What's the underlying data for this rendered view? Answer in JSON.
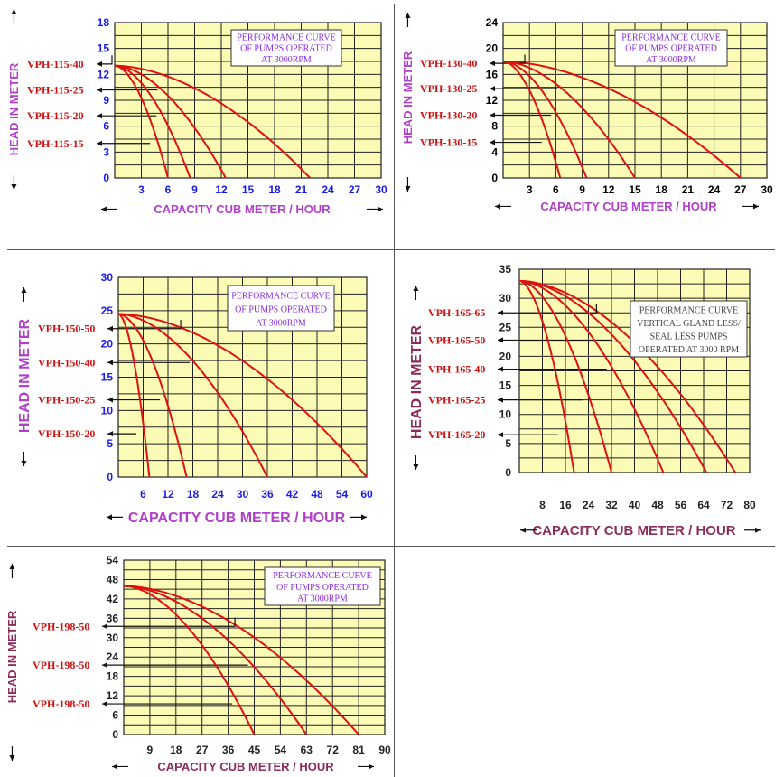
{
  "chart_data": [
    {
      "type": "line",
      "title": [
        "PERFORMANCE CURVE",
        "OF PUMPS OPERATED",
        "AT 3000RPM"
      ],
      "xlabel": "CAPACITY CUB METER / HOUR",
      "ylabel": "HEAD IN METER",
      "xlim": [
        0,
        30
      ],
      "ylim": [
        0,
        18
      ],
      "xticks": [
        3,
        6,
        9,
        12,
        15,
        18,
        21,
        24,
        27,
        30
      ],
      "yticks": [
        0,
        3,
        6,
        9,
        12,
        15,
        18
      ],
      "shutoff_head": 13,
      "series": [
        {
          "name": "VPH-115-40",
          "max_flow": 22,
          "label_y": 13.2
        },
        {
          "name": "VPH-115-25",
          "max_flow": 12.5,
          "label_y": 10.2
        },
        {
          "name": "VPH-115-20",
          "max_flow": 8.5,
          "label_y": 7.2
        },
        {
          "name": "VPH-115-15",
          "max_flow": 6,
          "label_y": 4.0
        }
      ],
      "colors": {
        "tick": "#1a1aee",
        "title": "#b040c8",
        "note": "#8a2be2"
      }
    },
    {
      "type": "line",
      "title": [
        "PERFORMANCE CURVE",
        "OF PUMPS OPERATED",
        "AT 3000RPM"
      ],
      "xlabel": "CAPACITY CUB METER / HOUR",
      "ylabel": "HEAD IN METER",
      "xlim": [
        0,
        30
      ],
      "ylim": [
        0,
        24
      ],
      "xticks": [
        3,
        6,
        9,
        12,
        15,
        18,
        21,
        24,
        27,
        30
      ],
      "yticks": [
        0,
        4,
        8,
        12,
        16,
        20,
        24
      ],
      "shutoff_head": 18,
      "series": [
        {
          "name": "VPH-130-40",
          "max_flow": 27,
          "label_y": 17.7
        },
        {
          "name": "VPH-130-25",
          "max_flow": 15,
          "label_y": 13.8
        },
        {
          "name": "VPH-130-20",
          "max_flow": 9.5,
          "label_y": 9.7
        },
        {
          "name": "VPH-130-15",
          "max_flow": 6.5,
          "label_y": 5.5
        }
      ],
      "colors": {
        "tick": "#000000",
        "title": "#b040c8",
        "note": "#8a2be2"
      }
    },
    {
      "type": "line",
      "title": [
        "PERFORMANCE CURVE",
        "OF PUMPS OPERATED",
        "AT 3000RPM"
      ],
      "xlabel": "CAPACITY CUB METER / HOUR",
      "ylabel": "HEAD IN METER",
      "xlim": [
        0,
        60
      ],
      "ylim": [
        0,
        30
      ],
      "xticks": [
        6,
        12,
        18,
        24,
        30,
        36,
        42,
        48,
        54,
        60
      ],
      "yticks": [
        0,
        5,
        10,
        15,
        20,
        25,
        30
      ],
      "shutoff_head": 24.5,
      "series": [
        {
          "name": "VPH-150-50",
          "max_flow": 60,
          "label_y": 22.3
        },
        {
          "name": "VPH-150-40",
          "max_flow": 36,
          "label_y": 17.2
        },
        {
          "name": "VPH-150-25",
          "max_flow": 16.5,
          "label_y": 11.6
        },
        {
          "name": "VPH-150-20",
          "max_flow": 7.5,
          "label_y": 6.5
        }
      ],
      "colors": {
        "tick": "#1a1aee",
        "title": "#b040c8",
        "note": "#8a2be2"
      }
    },
    {
      "type": "line",
      "title": [
        "PERFORMANCE CURVE",
        "VERTICAL GLAND LESS/",
        "SEAL LESS  PUMPS",
        "OPERATED AT 3000 RPM"
      ],
      "xlabel": "CAPACITY CUB METER / HOUR",
      "ylabel": "HEAD IN METER",
      "xlim": [
        0,
        80
      ],
      "ylim": [
        0,
        35
      ],
      "xticks": [
        8,
        16,
        24,
        32,
        40,
        48,
        56,
        64,
        72,
        80
      ],
      "yticks": [
        0,
        5,
        10,
        15,
        20,
        25,
        30,
        35
      ],
      "shutoff_head": 33,
      "series": [
        {
          "name": "VPH-165-65",
          "max_flow": 75,
          "label_y": 27.5
        },
        {
          "name": "VPH-165-50",
          "max_flow": 65,
          "label_y": 22.8
        },
        {
          "name": "VPH-165-40",
          "max_flow": 50,
          "label_y": 17.8
        },
        {
          "name": "VPH-165-25",
          "max_flow": 32,
          "label_y": 12.5
        },
        {
          "name": "VPH-165-20",
          "max_flow": 19,
          "label_y": 6.5
        }
      ],
      "colors": {
        "tick": "#222222",
        "title": "#8b2c5a",
        "note": "#444444"
      }
    },
    {
      "type": "line",
      "title": [
        "PERFORMANCE CURVE",
        "OF PUMPS OPERATED",
        "AT 3000RPM"
      ],
      "xlabel": "CAPACITY CUB METER / HOUR",
      "ylabel": "HEAD IN METER",
      "xlim": [
        0,
        90
      ],
      "ylim": [
        0,
        54
      ],
      "xticks": [
        9,
        18,
        27,
        36,
        45,
        54,
        63,
        72,
        81,
        90
      ],
      "yticks": [
        0,
        6,
        12,
        18,
        24,
        30,
        36,
        42,
        48,
        54
      ],
      "shutoff_head": 46,
      "series": [
        {
          "name": "VPH-198-50",
          "max_flow": 81,
          "label_y": 33.5
        },
        {
          "name": "VPH-198-50",
          "max_flow": 63,
          "label_y": 21.5
        },
        {
          "name": "VPH-198-50",
          "max_flow": 45,
          "label_y": 9.5
        }
      ],
      "colors": {
        "tick": "#222222",
        "title": "#8b2c5a",
        "note": "#8a2be2"
      }
    }
  ]
}
